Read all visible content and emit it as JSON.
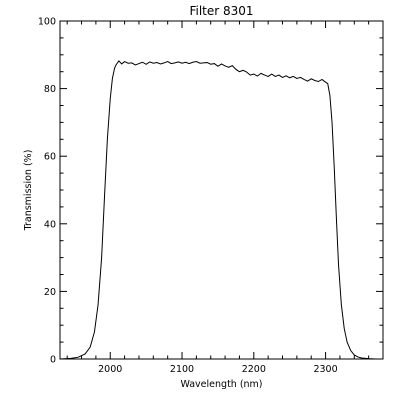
{
  "chart_data": {
    "type": "line",
    "title": "Filter 8301",
    "xlabel": "Wavelength (nm)",
    "ylabel": "Transmission (%)",
    "xlim": [
      1930,
      2380
    ],
    "ylim": [
      0,
      100
    ],
    "x_ticks": [
      2000,
      2100,
      2200,
      2300
    ],
    "y_ticks": [
      0,
      20,
      40,
      60,
      80,
      100
    ],
    "grid": false,
    "colors": {
      "line": "#000000",
      "axes": "#000000",
      "background": "#ffffff"
    },
    "series": [
      {
        "x": [
          1930,
          1945,
          1955,
          1965,
          1972,
          1978,
          1983,
          1988,
          1992,
          1996,
          2000,
          2003,
          2006,
          2008,
          2012,
          2016,
          2020,
          2025,
          2030,
          2035,
          2040,
          2045,
          2050,
          2055,
          2060,
          2065,
          2070,
          2075,
          2080,
          2085,
          2090,
          2095,
          2100,
          2105,
          2110,
          2115,
          2120,
          2125,
          2130,
          2135,
          2140,
          2145,
          2150,
          2155,
          2160,
          2165,
          2170,
          2175,
          2180,
          2185,
          2190,
          2195,
          2200,
          2205,
          2210,
          2215,
          2220,
          2225,
          2230,
          2235,
          2240,
          2245,
          2250,
          2255,
          2260,
          2265,
          2270,
          2275,
          2280,
          2285,
          2290,
          2295,
          2300,
          2303,
          2306,
          2309,
          2312,
          2315,
          2318,
          2322,
          2326,
          2330,
          2335,
          2340,
          2345,
          2350,
          2360,
          2370,
          2380
        ],
        "y": [
          0,
          0.2,
          0.5,
          1.5,
          3.5,
          8,
          16,
          30,
          48,
          65,
          77,
          83,
          86,
          87,
          88.2,
          87.3,
          88,
          87.5,
          87.6,
          87.0,
          87.4,
          87.8,
          87.2,
          87.9,
          87.5,
          87.7,
          87.3,
          87.6,
          88.0,
          87.4,
          87.6,
          87.9,
          87.5,
          87.8,
          87.4,
          87.8,
          88.0,
          87.5,
          87.6,
          87.7,
          87.2,
          87.4,
          86.6,
          87.3,
          86.7,
          86.3,
          86.8,
          85.7,
          85.0,
          85.4,
          84.9,
          84.0,
          84.3,
          83.7,
          84.5,
          84.0,
          83.6,
          84.3,
          83.6,
          84.0,
          83.3,
          83.8,
          83.2,
          83.6,
          83.0,
          83.3,
          82.7,
          82.2,
          82.9,
          82.4,
          82.1,
          82.7,
          81.9,
          81.5,
          78.0,
          70.0,
          57.0,
          42.0,
          28.0,
          16.0,
          9.0,
          5.0,
          2.5,
          1.2,
          0.6,
          0.3,
          0.1,
          0,
          0
        ]
      }
    ]
  }
}
